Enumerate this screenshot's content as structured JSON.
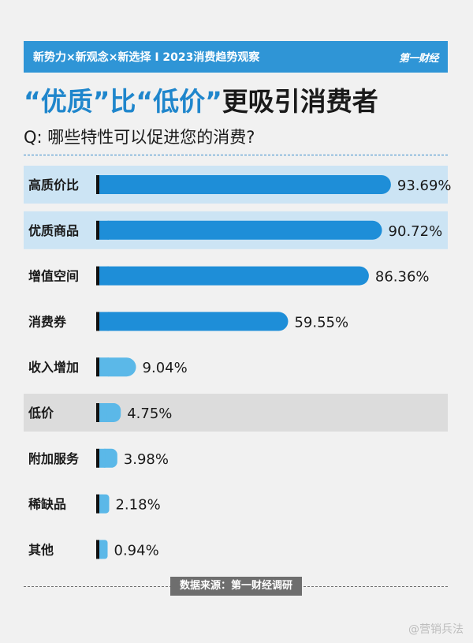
{
  "header": {
    "banner_text": "新势力×新观念×新选择 I 2023消费趋势观察",
    "logo_text": "第一财经",
    "title_quote1": "“优质”",
    "title_mid": "比",
    "title_quote2": "“低价”",
    "title_rest": "更吸引消费者",
    "question": "Q: 哪些特性可以促进您的消费?"
  },
  "footer": {
    "source": "数据来源：第一财经调研",
    "watermark": "@营销兵法"
  },
  "colors": {
    "bar_dark": "#1e8ed8",
    "bar_light": "#5bb8e8",
    "highlight_blue": "#cce4f4",
    "highlight_gray": "#dcdcdc"
  },
  "chart_data": {
    "type": "bar",
    "orientation": "horizontal",
    "categories": [
      "高质价比",
      "优质商品",
      "增值空间",
      "消费券",
      "收入增加",
      "低价",
      "附加服务",
      "稀缺品",
      "其他"
    ],
    "values": [
      93.69,
      90.72,
      86.36,
      59.55,
      9.04,
      4.75,
      3.98,
      2.18,
      0.94
    ],
    "value_labels": [
      "93.69%",
      "90.72%",
      "86.36%",
      "59.55%",
      "9.04%",
      "4.75%",
      "3.98%",
      "2.18%",
      "0.94%"
    ],
    "highlight": [
      "blue",
      "blue",
      "none",
      "none",
      "none",
      "gray",
      "none",
      "none",
      "none"
    ],
    "xlim": [
      0,
      100
    ],
    "grid": false,
    "legend": "none"
  }
}
